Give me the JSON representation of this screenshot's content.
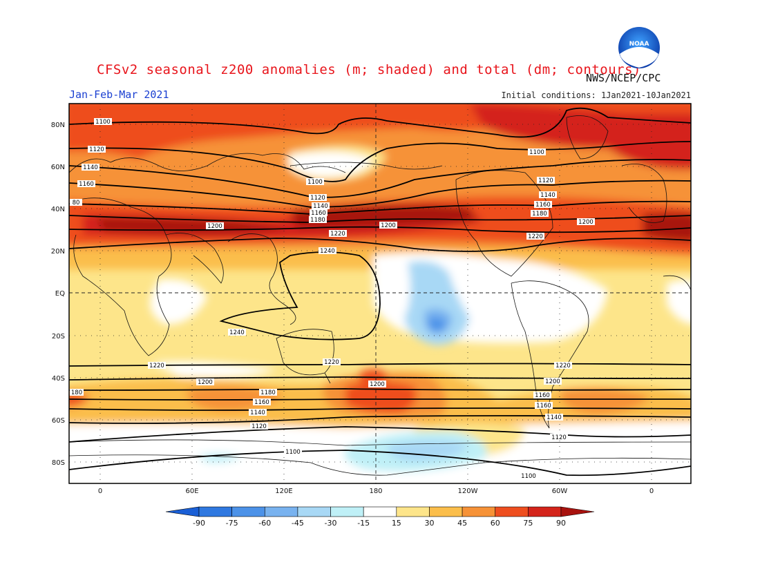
{
  "title": "CFSv2 seasonal z200 anomalies (m; shaded) and total (dm; contours)",
  "agency": "NWS/NCEP/CPC",
  "logo_text": "NOAA",
  "season": "Jan-Feb-Mar 2021",
  "initial_conditions": "Initial conditions: 1Jan2021-10Jan2021",
  "lat_ticks": [
    "80N",
    "60N",
    "40N",
    "20N",
    "EQ",
    "20S",
    "40S",
    "60S",
    "80S"
  ],
  "lon_ticks": [
    "0",
    "60E",
    "120E",
    "180",
    "120W",
    "60W",
    "0"
  ],
  "colorbar": {
    "labels": [
      "-90",
      "-75",
      "-60",
      "-45",
      "-30",
      "-15",
      "15",
      "30",
      "45",
      "60",
      "75",
      "90"
    ],
    "colors": [
      "#1a5fd6",
      "#2f78e0",
      "#4c92e8",
      "#78b2ef",
      "#a8d8f5",
      "#bff0f7",
      "#ffffff",
      "#fde58a",
      "#fbbe4b",
      "#f69237",
      "#ee4e1f",
      "#d4241b",
      "#a8120e"
    ]
  },
  "contour_labels": {
    "c1100": "1100",
    "c1120": "1120",
    "c1140": "1140",
    "c1160": "1160",
    "c1180": "1180",
    "c1200": "1200",
    "c1220": "1220",
    "c1240": "1240",
    "c80": "80",
    "c180": "180"
  }
}
